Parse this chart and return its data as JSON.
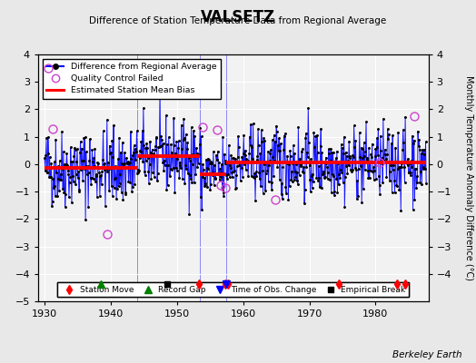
{
  "title": "VALSETZ",
  "subtitle": "Difference of Station Temperature Data from Regional Average",
  "ylabel": "Monthly Temperature Anomaly Difference (°C)",
  "background_color": "#e8e8e8",
  "plot_bg_color": "#f2f2f2",
  "ylim": [
    -5,
    4
  ],
  "xlim": [
    1929.0,
    1988.0
  ],
  "yticks_right": [
    -4,
    -3,
    -2,
    -1,
    0,
    1,
    2,
    3,
    4
  ],
  "yticks_left": [
    -5,
    -4,
    -3,
    -2,
    -1,
    0,
    1,
    2,
    3,
    4
  ],
  "segment_biases": [
    {
      "start": 1930.0,
      "end": 1944.0,
      "bias": -0.13
    },
    {
      "start": 1944.0,
      "end": 1953.5,
      "bias": 0.28
    },
    {
      "start": 1953.5,
      "end": 1957.5,
      "bias": -0.38
    },
    {
      "start": 1957.5,
      "end": 1975.0,
      "bias": 0.06
    },
    {
      "start": 1975.0,
      "end": 1983.0,
      "bias": 0.06
    },
    {
      "start": 1983.0,
      "end": 1987.6,
      "bias": 0.06
    }
  ],
  "station_moves": [
    1953.25,
    1957.25,
    1957.75,
    1974.5,
    1983.25,
    1984.5
  ],
  "record_gaps": [
    1938.5
  ],
  "obs_changes": [
    1957.5
  ],
  "empirical_breaks": [
    1948.5
  ],
  "qc_failed": [
    [
      1930.5,
      3.5
    ],
    [
      1931.2,
      1.3
    ],
    [
      1939.5,
      -2.55
    ],
    [
      1953.9,
      1.35
    ],
    [
      1956.1,
      1.25
    ],
    [
      1956.6,
      -0.75
    ],
    [
      1957.3,
      -0.85
    ],
    [
      1964.9,
      -1.3
    ],
    [
      1980.6,
      0.05
    ],
    [
      1985.9,
      1.75
    ]
  ],
  "vert_line_color": "blue",
  "vert_lines": [
    1944.0,
    1953.5,
    1957.5
  ],
  "seed": 42
}
